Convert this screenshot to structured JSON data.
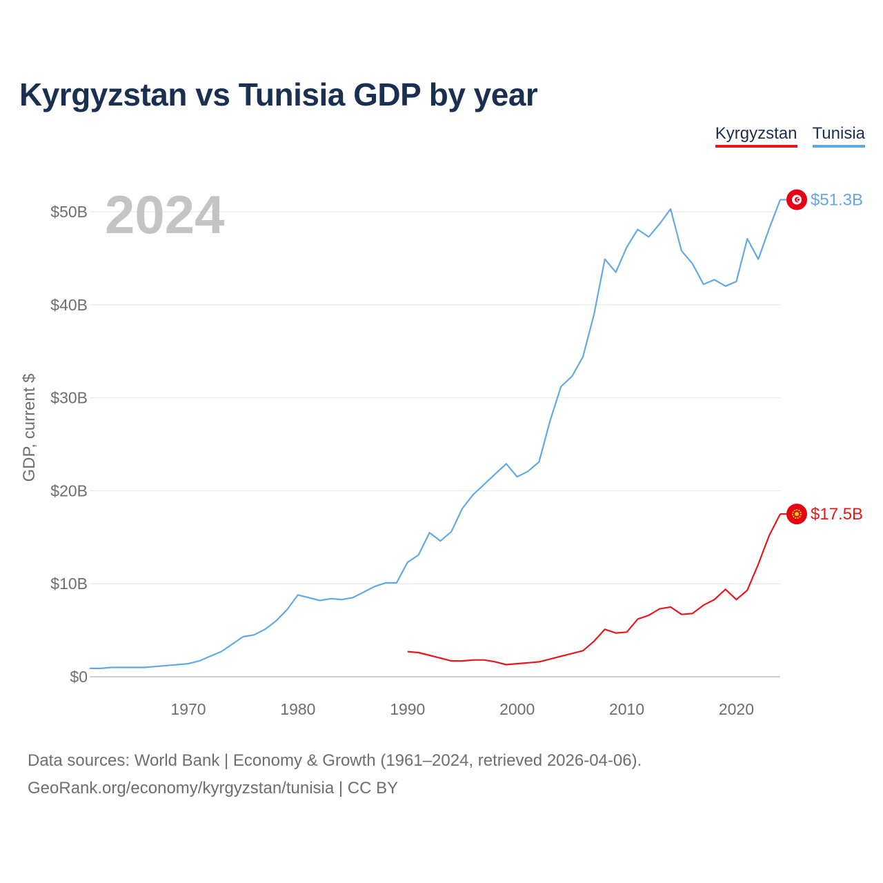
{
  "title": "Kyrgyzstan vs Tunisia GDP by year",
  "legend": [
    {
      "name": "Kyrgyzstan",
      "color": "#e8161b"
    },
    {
      "name": "Tunisia",
      "color": "#62a8e5"
    }
  ],
  "chart_data": {
    "type": "line",
    "title": "Kyrgyzstan vs Tunisia GDP by year",
    "year_watermark": "2024",
    "ylabel": "GDP, current $",
    "xlabel": "",
    "xlim": [
      1961,
      2024
    ],
    "ylim": [
      0,
      53
    ],
    "y_ticks": [
      {
        "value": 0,
        "label": "$0"
      },
      {
        "value": 10,
        "label": "$10B"
      },
      {
        "value": 20,
        "label": "$20B"
      },
      {
        "value": 30,
        "label": "$30B"
      },
      {
        "value": 40,
        "label": "$40B"
      },
      {
        "value": 50,
        "label": "$50B"
      }
    ],
    "x_ticks": [
      {
        "value": 1970,
        "label": "1970"
      },
      {
        "value": 1980,
        "label": "1980"
      },
      {
        "value": 1990,
        "label": "1990"
      },
      {
        "value": 2000,
        "label": "2000"
      },
      {
        "value": 2010,
        "label": "2010"
      },
      {
        "value": 2020,
        "label": "2020"
      }
    ],
    "grid": true,
    "legend_position": "top-right",
    "series": [
      {
        "name": "Tunisia",
        "color": "#62a8e5",
        "end_label": "$51.3B",
        "points": [
          [
            1961,
            0.9
          ],
          [
            1962,
            0.9
          ],
          [
            1963,
            1.0
          ],
          [
            1964,
            1.0
          ],
          [
            1965,
            1.0
          ],
          [
            1966,
            1.0
          ],
          [
            1967,
            1.1
          ],
          [
            1968,
            1.2
          ],
          [
            1969,
            1.3
          ],
          [
            1970,
            1.4
          ],
          [
            1971,
            1.7
          ],
          [
            1972,
            2.2
          ],
          [
            1973,
            2.7
          ],
          [
            1974,
            3.5
          ],
          [
            1975,
            4.3
          ],
          [
            1976,
            4.5
          ],
          [
            1977,
            5.1
          ],
          [
            1978,
            6.0
          ],
          [
            1979,
            7.2
          ],
          [
            1980,
            8.8
          ],
          [
            1981,
            8.5
          ],
          [
            1982,
            8.2
          ],
          [
            1983,
            8.4
          ],
          [
            1984,
            8.3
          ],
          [
            1985,
            8.5
          ],
          [
            1986,
            9.1
          ],
          [
            1987,
            9.7
          ],
          [
            1988,
            10.1
          ],
          [
            1989,
            10.1
          ],
          [
            1990,
            12.3
          ],
          [
            1991,
            13.1
          ],
          [
            1992,
            15.5
          ],
          [
            1993,
            14.6
          ],
          [
            1994,
            15.6
          ],
          [
            1995,
            18.1
          ],
          [
            1996,
            19.6
          ],
          [
            1997,
            20.7
          ],
          [
            1998,
            21.8
          ],
          [
            1999,
            22.9
          ],
          [
            2000,
            21.5
          ],
          [
            2001,
            22.1
          ],
          [
            2002,
            23.1
          ],
          [
            2003,
            27.5
          ],
          [
            2004,
            31.2
          ],
          [
            2005,
            32.3
          ],
          [
            2006,
            34.4
          ],
          [
            2007,
            38.9
          ],
          [
            2008,
            44.9
          ],
          [
            2009,
            43.5
          ],
          [
            2010,
            46.2
          ],
          [
            2011,
            48.1
          ],
          [
            2012,
            47.3
          ],
          [
            2013,
            48.7
          ],
          [
            2014,
            50.3
          ],
          [
            2015,
            45.8
          ],
          [
            2016,
            44.4
          ],
          [
            2017,
            42.2
          ],
          [
            2018,
            42.7
          ],
          [
            2019,
            42.0
          ],
          [
            2020,
            42.5
          ],
          [
            2021,
            47.1
          ],
          [
            2022,
            44.9
          ],
          [
            2023,
            48.2
          ],
          [
            2024,
            51.3
          ]
        ]
      },
      {
        "name": "Kyrgyzstan",
        "color": "#e8161b",
        "end_label": "$17.5B",
        "points": [
          [
            1990,
            2.7
          ],
          [
            1991,
            2.6
          ],
          [
            1992,
            2.3
          ],
          [
            1993,
            2.0
          ],
          [
            1994,
            1.7
          ],
          [
            1995,
            1.7
          ],
          [
            1996,
            1.8
          ],
          [
            1997,
            1.8
          ],
          [
            1998,
            1.6
          ],
          [
            1999,
            1.3
          ],
          [
            2000,
            1.4
          ],
          [
            2001,
            1.5
          ],
          [
            2002,
            1.6
          ],
          [
            2003,
            1.9
          ],
          [
            2004,
            2.2
          ],
          [
            2005,
            2.5
          ],
          [
            2006,
            2.8
          ],
          [
            2007,
            3.8
          ],
          [
            2008,
            5.1
          ],
          [
            2009,
            4.7
          ],
          [
            2010,
            4.8
          ],
          [
            2011,
            6.2
          ],
          [
            2012,
            6.6
          ],
          [
            2013,
            7.3
          ],
          [
            2014,
            7.5
          ],
          [
            2015,
            6.7
          ],
          [
            2016,
            6.8
          ],
          [
            2017,
            7.7
          ],
          [
            2018,
            8.3
          ],
          [
            2019,
            9.4
          ],
          [
            2020,
            8.3
          ],
          [
            2021,
            9.3
          ],
          [
            2022,
            12.1
          ],
          [
            2023,
            15.2
          ],
          [
            2024,
            17.5
          ]
        ]
      }
    ]
  },
  "footer": {
    "line1": "Data sources: World Bank | Economy & Growth (1961–2024, retrieved 2026-04-06).",
    "line2": "GeoRank.org/economy/kyrgyzstan/tunisia | CC BY"
  }
}
